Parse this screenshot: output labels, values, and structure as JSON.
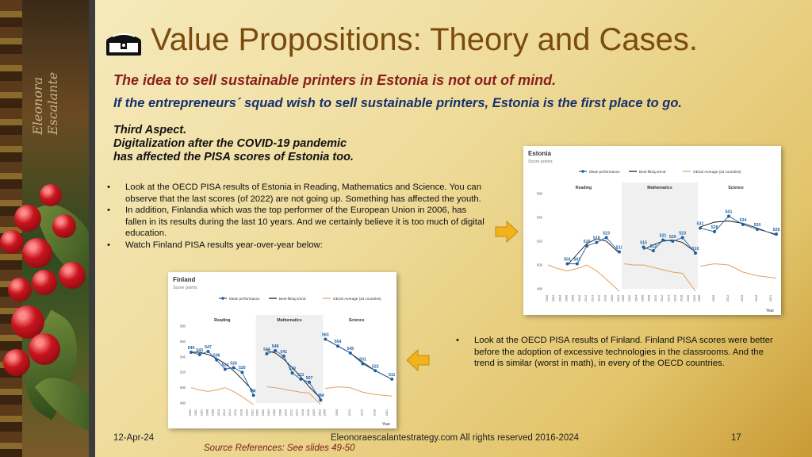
{
  "slide": {
    "title": "Value Propositions: Theory and Cases.",
    "subtitle_red": "The idea to sell sustainable printers in Estonia is not out of mind.",
    "subtitle_blue": "If the entrepreneurs´ squad wish to sell sustainable printers, Estonia is the first place to go.",
    "aspect_lines": [
      "Third Aspect.",
      "Digitalization after the COVID-19 pandemic",
      "has affected the PISA scores of Estonia too."
    ],
    "signature": "Eleonora Escalante",
    "bullets": [
      "Look at the OECD PISA results of Estonia in Reading, Mathematics and Science. You can observe that the last scores (of 2022) are not going up. Something has affected the youth.",
      "In addition, Finlandia which was the top performer of the European Union in 2006, has fallen in its results during the last 10 years. And we certainly believe it is too much of digital education.",
      "Watch Finland PISA results year-over-year below:"
    ],
    "bullet_right": "Look at the OECD PISA results of Finland. Finland PISA scores were better before the adoption of excessive technologies in the classrooms. And the trend is similar (worst in math), in every of the OECD countries.",
    "footer_date": "12-Apr-24",
    "footer_center": "Eleonoraescalantestrategy.com  All rights reserved 2016-2024",
    "footer_page": "17",
    "source": "Source References: See slides 49-50",
    "colors": {
      "title": "#7a4a0e",
      "red": "#8a1e1e",
      "blue": "#16306a",
      "series": "#1f5fa0",
      "trend": "#111111",
      "oecd": "#e0a060",
      "arrow": "#f2b21a"
    },
    "icons": [
      "treasure-chest-icon",
      "arrow-right-icon",
      "arrow-left-icon"
    ]
  },
  "chart_data": [
    {
      "type": "line",
      "title": "Estonia",
      "subtitle": "Score points",
      "legend": [
        "Mean performance",
        "Best-fitting trend",
        "OECD Average (23 countries)"
      ],
      "legend_position": "top",
      "xlabel": "Year",
      "ylim": [
        480,
        560
      ],
      "yticks": [
        480,
        500,
        520,
        540,
        560
      ],
      "panels": [
        {
          "name": "Reading",
          "x": [
            2000,
            2003,
            2006,
            2009,
            2012,
            2015,
            2018,
            2022
          ],
          "years_tick": [
            2000,
            2002,
            2004,
            2006,
            2008,
            2010,
            2012,
            2014,
            2016,
            2018,
            2020,
            2022
          ],
          "mean": [
            null,
            null,
            501,
            501,
            516,
            519,
            523,
            511
          ],
          "mean_labels": [
            null,
            null,
            "501",
            "501",
            "516",
            "519",
            "523",
            "511"
          ],
          "trend": [
            null,
            null,
            500,
            509,
            518,
            522,
            520,
            510
          ],
          "oecd": [
            500,
            497,
            495,
            497,
            500,
            495,
            488,
            478
          ]
        },
        {
          "name": "Mathematics",
          "x": [
            2000,
            2003,
            2006,
            2009,
            2012,
            2015,
            2018,
            2022
          ],
          "years_tick": [
            2000,
            2002,
            2004,
            2006,
            2008,
            2010,
            2012,
            2014,
            2016,
            2018,
            2020,
            2022
          ],
          "mean": [
            null,
            null,
            515,
            512,
            521,
            520,
            523,
            510
          ],
          "mean_labels": [
            null,
            null,
            "515",
            "512",
            "521",
            "520",
            "523",
            "510"
          ],
          "trend": [
            null,
            null,
            513,
            517,
            520,
            521,
            519,
            511
          ],
          "oecd": [
            501,
            500,
            500,
            498,
            496,
            494,
            493,
            478
          ]
        },
        {
          "name": "Science",
          "x": [
            2006,
            2009,
            2012,
            2015,
            2018,
            2022
          ],
          "years_tick": [
            2006,
            2009,
            2012,
            2015,
            2018,
            2021
          ],
          "mean": [
            531,
            528,
            541,
            534,
            530,
            526
          ],
          "mean_labels": [
            "531",
            "528",
            "541",
            "534",
            "530",
            "526"
          ],
          "trend": [
            532,
            536,
            537,
            535,
            531,
            525
          ],
          "oecd": [
            499,
            501,
            500,
            494,
            491,
            489
          ]
        }
      ]
    },
    {
      "type": "line",
      "title": "Finland",
      "subtitle": "Score points",
      "legend": [
        "Mean performance",
        "Best-fitting trend",
        "OECD Average (23 countries)"
      ],
      "legend_position": "top",
      "xlabel": "Year",
      "ylim": [
        480,
        580
      ],
      "yticks": [
        480,
        500,
        520,
        540,
        560,
        580
      ],
      "panels": [
        {
          "name": "Reading",
          "x": [
            2000,
            2003,
            2006,
            2009,
            2012,
            2015,
            2018,
            2022
          ],
          "years_tick": [
            2000,
            2002,
            2004,
            2006,
            2008,
            2010,
            2012,
            2014,
            2016,
            2018,
            2020,
            2022
          ],
          "mean": [
            546,
            543,
            547,
            536,
            524,
            526,
            520,
            490
          ],
          "mean_labels": [
            "546",
            "543",
            "547",
            "536",
            "524",
            "526",
            "520",
            "490"
          ],
          "trend": [
            546,
            546,
            543,
            538,
            531,
            522,
            511,
            495
          ],
          "oecd": [
            500,
            497,
            495,
            497,
            500,
            495,
            488,
            478
          ]
        },
        {
          "name": "Mathematics",
          "x": [
            2003,
            2006,
            2009,
            2012,
            2015,
            2018,
            2022
          ],
          "years_tick": [
            2000,
            2002,
            2004,
            2006,
            2008,
            2010,
            2012,
            2014,
            2016,
            2018,
            2020,
            2022
          ],
          "mean": [
            544,
            548,
            541,
            519,
            511,
            507,
            484
          ],
          "mean_labels": [
            "544",
            "548",
            "541",
            "519",
            "511",
            "507",
            "484"
          ],
          "trend": [
            548,
            545,
            537,
            526,
            514,
            501,
            486
          ],
          "oecd": [
            501,
            500,
            498,
            496,
            494,
            493,
            478
          ]
        },
        {
          "name": "Science",
          "x": [
            2006,
            2009,
            2012,
            2015,
            2018,
            2022
          ],
          "years_tick": [
            2006,
            2009,
            2012,
            2015,
            2018,
            2021
          ],
          "mean": [
            563,
            554,
            545,
            531,
            522,
            511
          ],
          "mean_labels": [
            "563",
            "554",
            "545",
            "531",
            "522",
            "511"
          ],
          "trend": [
            563,
            554,
            545,
            533,
            522,
            511
          ],
          "oecd": [
            499,
            501,
            500,
            494,
            491,
            489
          ]
        }
      ]
    }
  ]
}
